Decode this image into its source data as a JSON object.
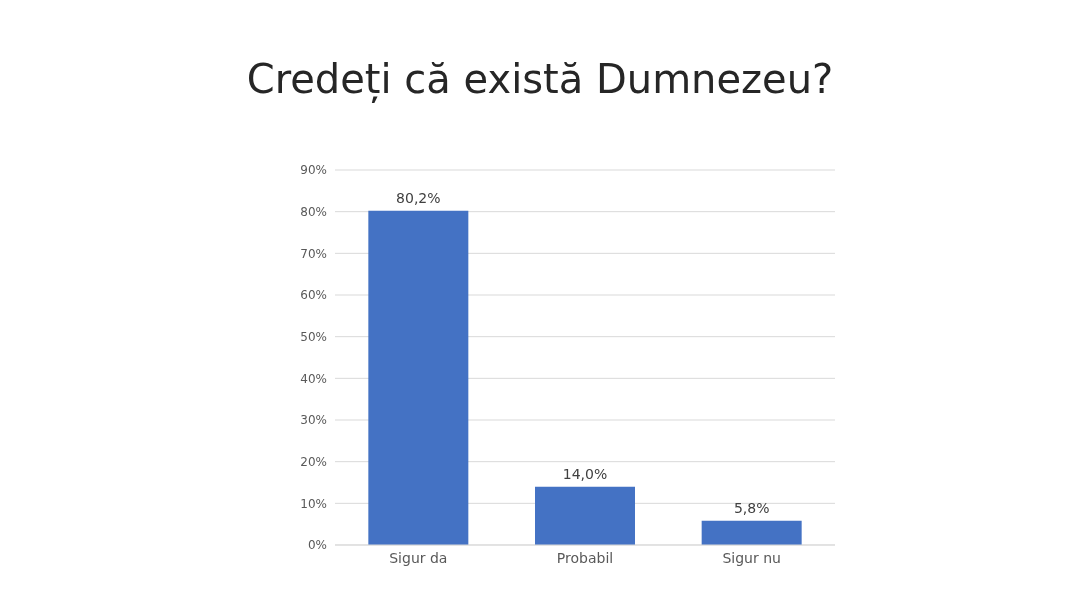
{
  "chart_data": {
    "type": "bar",
    "title": "Credeți că există Dumnezeu?",
    "categories": [
      "Sigur da",
      "Probabil",
      "Sigur nu"
    ],
    "values": [
      80.2,
      14.0,
      5.8
    ],
    "value_labels": [
      "80,2%",
      "14,0%",
      "5,8%"
    ],
    "color": "#4472c4",
    "ylim": [
      0,
      90
    ],
    "yticks": [
      {
        "value": 0,
        "label": "0%"
      },
      {
        "value": 10,
        "label": "10%"
      },
      {
        "value": 20,
        "label": "20%"
      },
      {
        "value": 30,
        "label": "30%"
      },
      {
        "value": 40,
        "label": "40%"
      },
      {
        "value": 50,
        "label": "50%"
      },
      {
        "value": 60,
        "label": "60%"
      },
      {
        "value": 70,
        "label": "70%"
      },
      {
        "value": 80,
        "label": "80%"
      },
      {
        "value": 90,
        "label": "90%"
      }
    ],
    "grid": "y",
    "legend": false
  }
}
